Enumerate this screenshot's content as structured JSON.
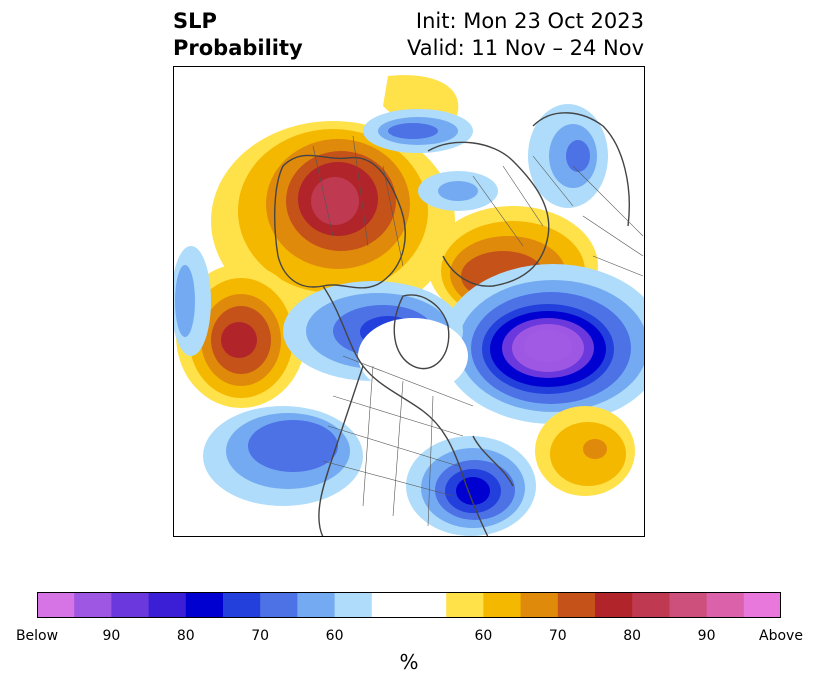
{
  "header": {
    "title_line1": "SLP",
    "title_line2": "Probability",
    "init": "Init: Mon 23 Oct 2023",
    "valid": "Valid: 11 Nov – 24 Nov"
  },
  "map": {
    "projection": "polar-stereographic",
    "variable": "SLP",
    "anomalies": [
      {
        "id": "alaska-high",
        "sign": "above",
        "peak_percent": 80
      },
      {
        "id": "north-pacific-high",
        "sign": "above",
        "peak_percent": 75
      },
      {
        "id": "barents-high",
        "sign": "above",
        "peak_percent": 75
      },
      {
        "id": "iceland-low",
        "sign": "below",
        "peak_percent": 90
      },
      {
        "id": "eastern-us-low",
        "sign": "below",
        "peak_percent": 80
      },
      {
        "id": "central-canada-low",
        "sign": "below",
        "peak_percent": 70
      },
      {
        "id": "north-atlantic-high",
        "sign": "above",
        "peak_percent": 65
      }
    ]
  },
  "colorbar": {
    "unit": "%",
    "tick_labels": [
      "Below",
      "90",
      "80",
      "70",
      "60",
      "60",
      "70",
      "80",
      "90",
      "Above"
    ],
    "colors": [
      "#d674e6",
      "#9e57e2",
      "#6a38dc",
      "#3a1fd6",
      "#0000d0",
      "#2340dc",
      "#4c72e6",
      "#74aaf2",
      "#aedcfa",
      "#ffffff",
      "#ffe14a",
      "#f5b800",
      "#e08a0c",
      "#c55218",
      "#b0242a",
      "#bf3a50",
      "#cc4f7c",
      "#db62aa",
      "#e878dc"
    ]
  }
}
